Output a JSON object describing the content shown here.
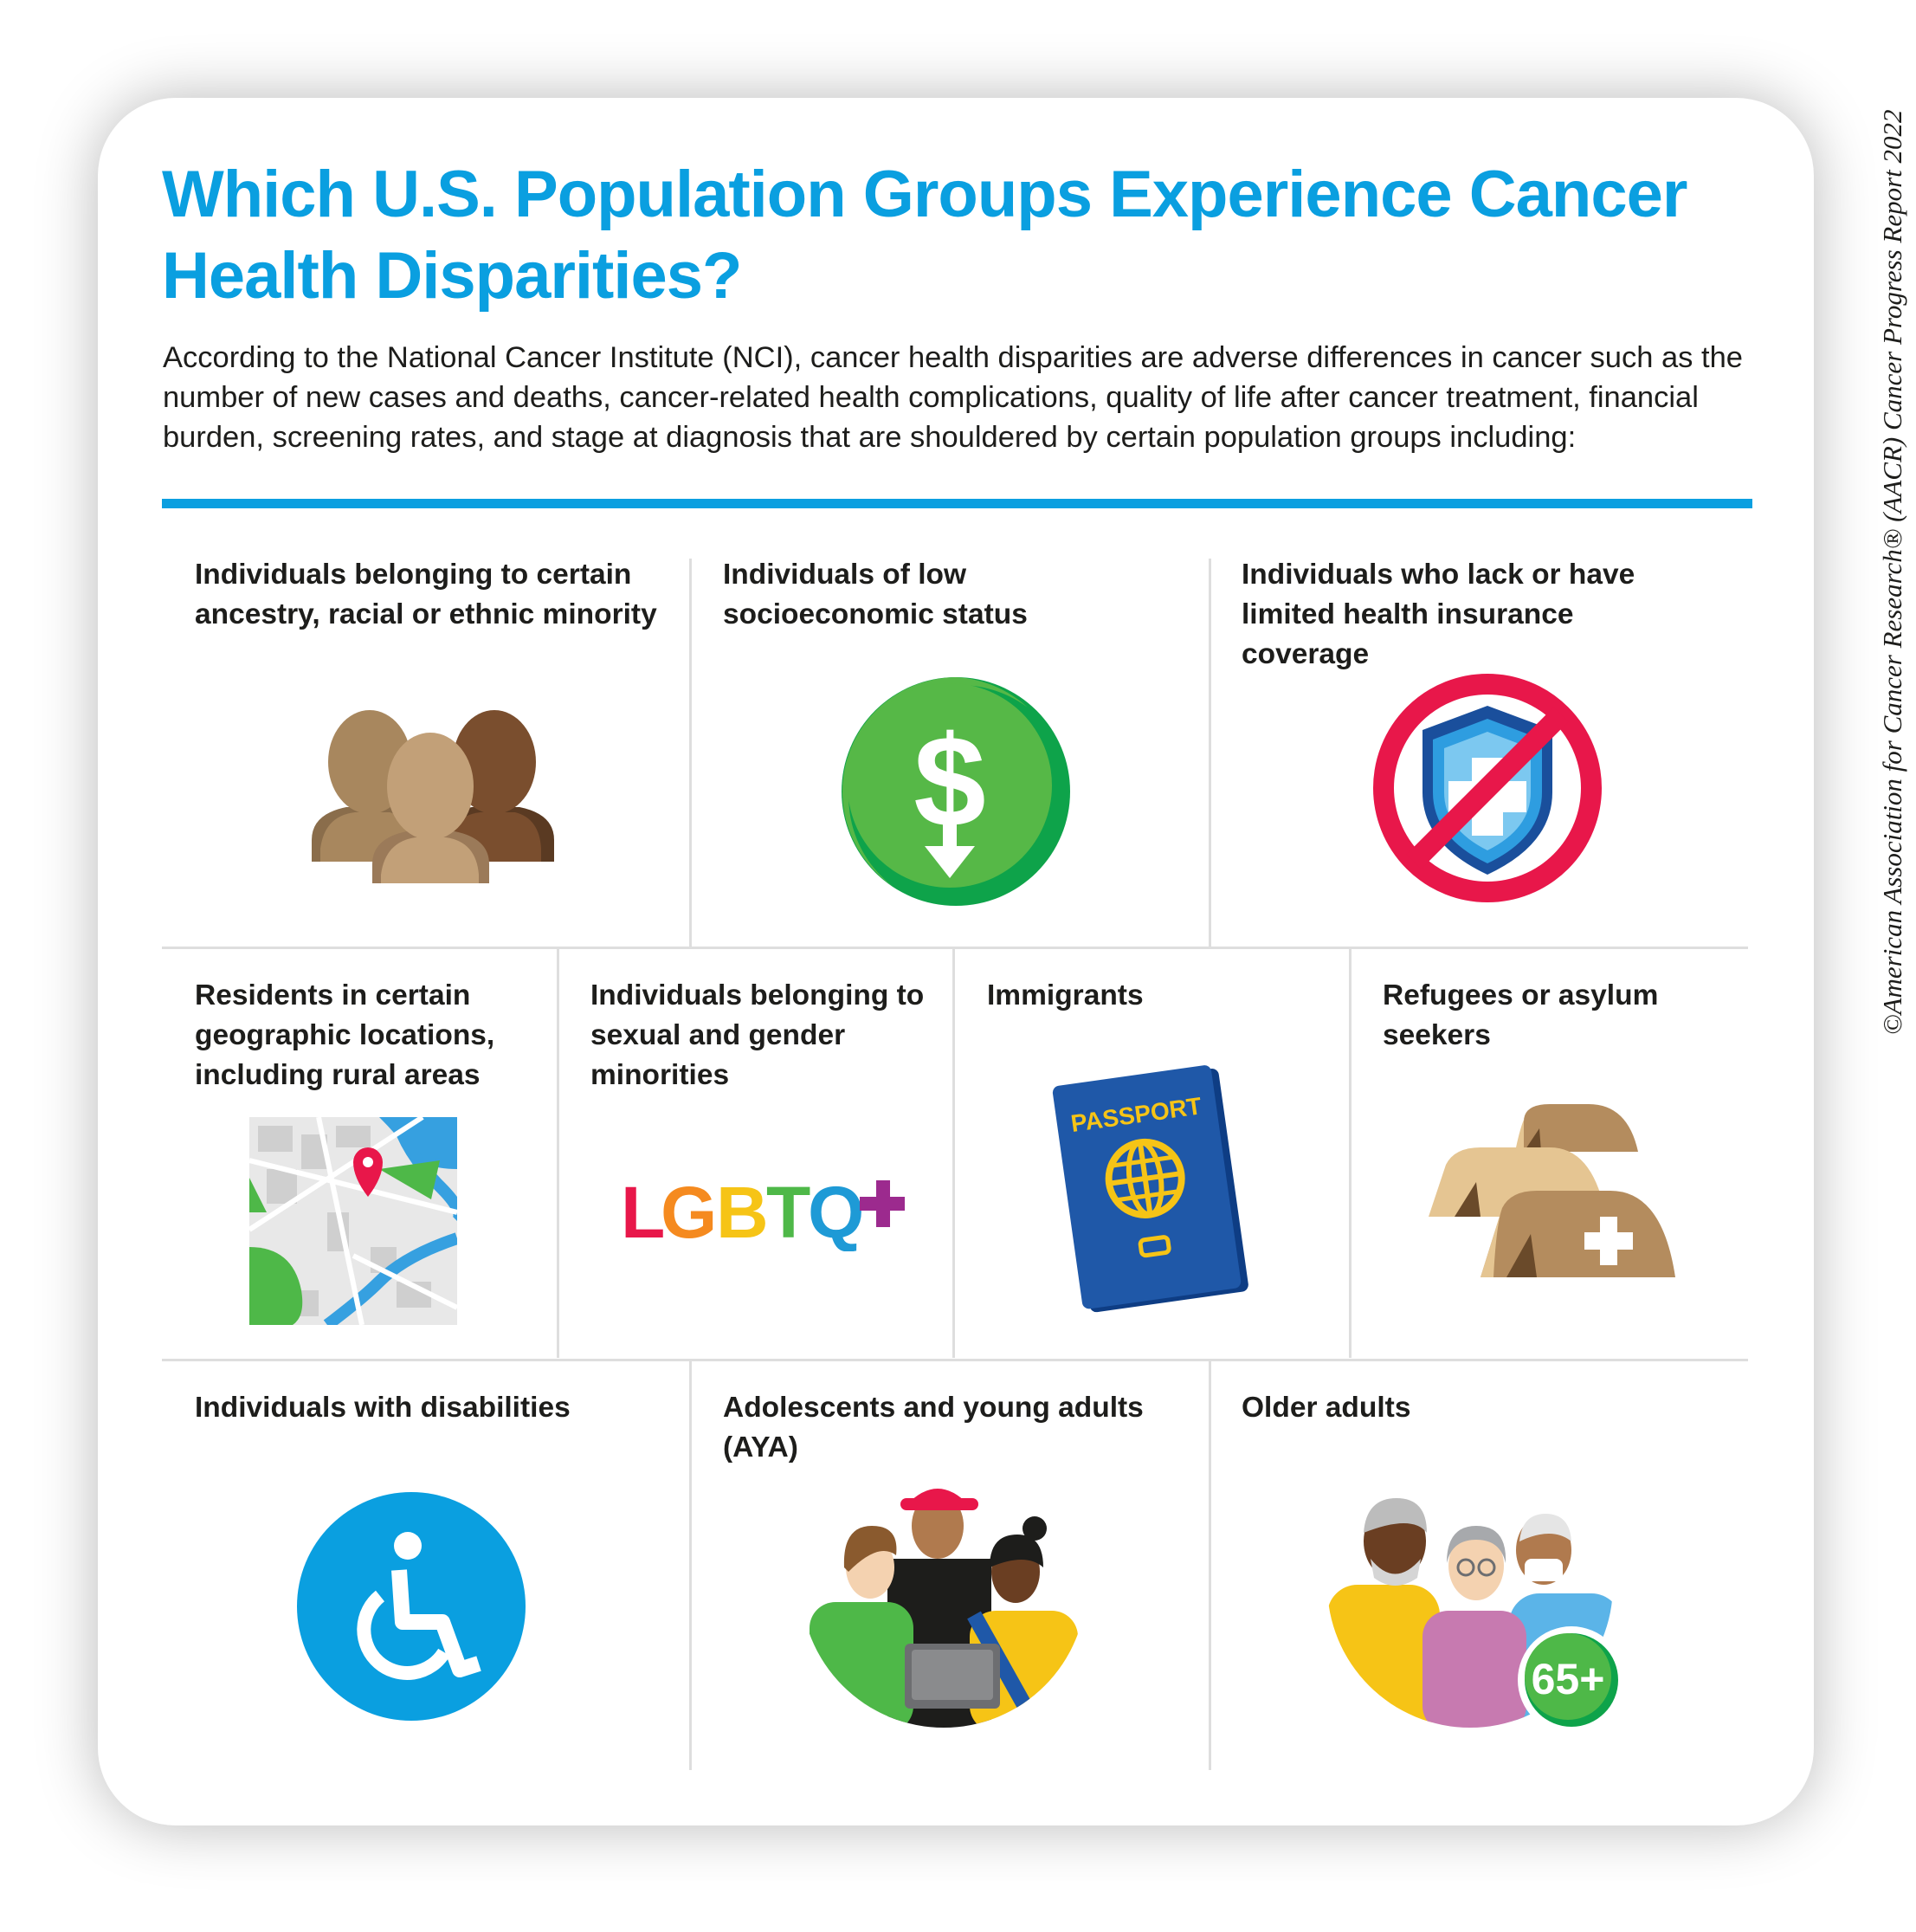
{
  "title": "Which U.S. Population Groups Experience Cancer Health Disparities?",
  "intro": "According to the National Cancer Institute (NCI), cancer health disparities are adverse differences in cancer such as the number of new cases and deaths, cancer-related health complications, quality of life after cancer treatment, financial burden, screening rates, and stage at diagnosis that are shouldered by certain population groups including:",
  "credit": "©American Association for Cancer Research® (AACR) Cancer Progress Report 2022",
  "colors": {
    "accent": "#0b9fe0",
    "green": "#4eb848",
    "red": "#e8174a",
    "passport": "#1f58a8",
    "wheelchair": "#0a9fe0"
  },
  "groups": [
    {
      "label": "Individuals belonging to certain ancestry, racial or ethnic minority",
      "icon": "people-heads-icon"
    },
    {
      "label": "Individuals of low socioeconomic status",
      "icon": "dollar-down-icon"
    },
    {
      "label": "Individuals who lack or have limited health insurance coverage",
      "icon": "no-insurance-icon"
    },
    {
      "label": "Residents in certain geographic locations, including rural areas",
      "icon": "map-icon"
    },
    {
      "label": "Individuals belonging to sexual and gender minorities",
      "icon": "lgbtq-icon",
      "icon_text": "LGBTQ+"
    },
    {
      "label": "Immigrants",
      "icon": "passport-icon",
      "icon_text": "PASSPORT"
    },
    {
      "label": "Refugees or asylum seekers",
      "icon": "tents-icon"
    },
    {
      "label": "Individuals with disabilities",
      "icon": "wheelchair-icon"
    },
    {
      "label": "Adolescents and young adults (AYA)",
      "icon": "young-adults-icon"
    },
    {
      "label": "Older adults",
      "icon": "older-adults-icon",
      "icon_text": "65+"
    }
  ]
}
